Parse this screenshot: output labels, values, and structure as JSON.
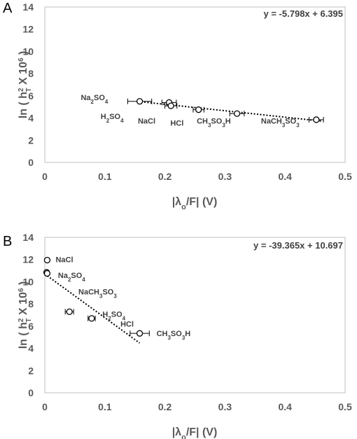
{
  "panels": [
    {
      "letter": "A",
      "equation": "y = -5.798x + 6.395",
      "xlabel_parts": [
        "|λ",
        "o",
        "/F| (V)"
      ],
      "ylabel_parts": [
        "ln ( h",
        "2",
        "T",
        " X 10",
        "6",
        " )"
      ]
    },
    {
      "letter": "B",
      "equation": "y = -39.365x + 10.697",
      "xlabel_parts": [
        "|λ",
        "o",
        "/F| (V)"
      ],
      "ylabel_parts": [
        "ln ( h",
        "2",
        "T",
        " X 10",
        "6",
        " )"
      ]
    }
  ],
  "chart_data": [
    {
      "type": "scatter",
      "panel": "A",
      "xlim": [
        0,
        0.5
      ],
      "ylim": [
        0,
        14
      ],
      "xticks": [
        "0",
        "0.1",
        "0.2",
        "0.3",
        "0.4",
        "0.5"
      ],
      "yticks": [
        "0",
        "2",
        "4",
        "6",
        "8",
        "10",
        "12",
        "14"
      ],
      "grid": false,
      "points": [
        {
          "x": 0.158,
          "y": 5.5,
          "xerr": 0.02
        },
        {
          "x": 0.207,
          "y": 5.4,
          "xerr": 0.012
        },
        {
          "x": 0.21,
          "y": 5.1,
          "xerr": 0.01
        },
        {
          "x": 0.256,
          "y": 4.75,
          "xerr": 0.009
        },
        {
          "x": 0.32,
          "y": 4.4,
          "xerr": 0.012
        },
        {
          "x": 0.452,
          "y": 3.85,
          "xerr": 0.012
        }
      ],
      "labels": [
        {
          "parts": [
            "Na",
            "2",
            "SO",
            "4"
          ],
          "x": 0.06,
          "y": 5.6
        },
        {
          "parts": [
            "H",
            "2",
            "SO",
            "4"
          ],
          "x": 0.093,
          "y": 3.9
        },
        {
          "parts": [
            "NaCl"
          ],
          "x": 0.155,
          "y": 3.5
        },
        {
          "parts": [
            "HCl"
          ],
          "x": 0.209,
          "y": 3.3
        },
        {
          "parts": [
            "CH",
            "3",
            "SO",
            "3",
            "H"
          ],
          "x": 0.253,
          "y": 3.5
        },
        {
          "parts": [
            "NaCH",
            "3",
            "SO",
            "3"
          ],
          "x": 0.36,
          "y": 3.5
        }
      ],
      "trendline": {
        "slope": -5.798,
        "intercept": 6.395,
        "x_range": [
          0.155,
          0.46
        ]
      }
    },
    {
      "type": "scatter",
      "panel": "B",
      "xlim": [
        0,
        0.5
      ],
      "ylim": [
        0,
        14
      ],
      "xticks": [
        "0",
        "0.1",
        "0.2",
        "0.3",
        "0.4",
        "0.5"
      ],
      "yticks": [
        "0",
        "2",
        "4",
        "6",
        "8",
        "10",
        "12",
        "14"
      ],
      "grid": false,
      "points": [
        {
          "x": 0.004,
          "y": 11.95,
          "xerr": 0
        },
        {
          "x": 0.003,
          "y": 10.85,
          "xerr": 0
        },
        {
          "x": 0.004,
          "y": 10.75,
          "xerr": 0
        },
        {
          "x": 0.041,
          "y": 7.3,
          "xerr": 0.007
        },
        {
          "x": 0.078,
          "y": 6.7,
          "xerr": 0.006
        },
        {
          "x": 0.158,
          "y": 5.35,
          "xerr": 0.016
        }
      ],
      "labels": [
        {
          "parts": [
            "NaCl"
          ],
          "x": 0.018,
          "y": 11.75
        },
        {
          "parts": [
            "Na",
            "2",
            "SO",
            "4"
          ],
          "x": 0.022,
          "y": 10.35
        },
        {
          "parts": [
            "NaCH",
            "3",
            "SO",
            "3"
          ],
          "x": 0.056,
          "y": 8.85
        },
        {
          "parts": [
            "H",
            "2",
            "SO",
            "4"
          ],
          "x": 0.096,
          "y": 6.85
        },
        {
          "parts": [
            "HCl"
          ],
          "x": 0.126,
          "y": 5.95
        },
        {
          "parts": [
            "CH",
            "3",
            "SO",
            "3",
            "H"
          ],
          "x": 0.186,
          "y": 5.1
        }
      ],
      "trendline": {
        "slope": -39.365,
        "intercept": 10.697,
        "x_range": [
          0,
          0.158
        ]
      }
    }
  ]
}
